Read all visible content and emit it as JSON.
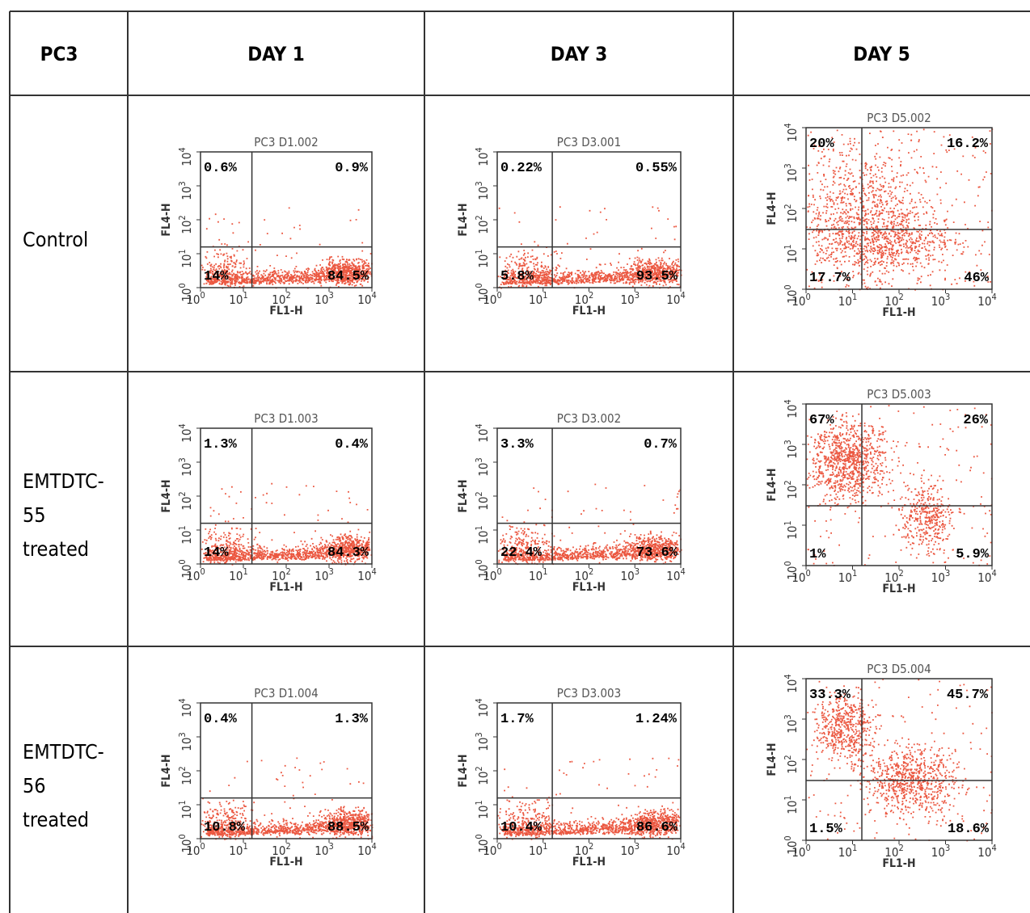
{
  "table": {
    "header": [
      "PC3",
      "DAY 1",
      "DAY 3",
      "DAY 5"
    ],
    "rows": [
      {
        "label": [
          "Control"
        ],
        "plots": [
          {
            "title": "PC3 D1.002",
            "quadrants": [
              "0.6%",
              "0.9%",
              "14%",
              "84.5%"
            ]
          },
          {
            "title": "PC3 D3.001",
            "quadrants": [
              "0.22%",
              "0.55%",
              "5.8%",
              "93.5%"
            ]
          },
          {
            "title": "PC3 D5.002",
            "quadrants": [
              "20%",
              "16.2%",
              "17.7%",
              "46%"
            ]
          }
        ]
      },
      {
        "label": [
          "EMTDTC-",
          "55",
          "treated"
        ],
        "plots": [
          {
            "title": "PC3 D1.003",
            "quadrants": [
              "1.3%",
              "0.4%",
              "14%",
              "84.3%"
            ]
          },
          {
            "title": "PC3 D3.002",
            "quadrants": [
              "3.3%",
              "0.7%",
              "22.4%",
              "73.6%"
            ]
          },
          {
            "title": "PC3 D5.003",
            "quadrants": [
              "67%",
              "26%",
              "1%",
              "5.9%"
            ]
          }
        ]
      },
      {
        "label": [
          "EMTDTC-",
          "56",
          "treated"
        ],
        "plots": [
          {
            "title": "PC3 D1.004",
            "quadrants": [
              "0.4%",
              "1.3%",
              "10.8%",
              "88.5%"
            ]
          },
          {
            "title": "PC3 D3.003",
            "quadrants": [
              "1.7%",
              "1.24%",
              "10.4%",
              "86.6%"
            ]
          },
          {
            "title": "PC3 D5.004",
            "quadrants": [
              "33.3%",
              "45.7%",
              "1.5%",
              "18.6%"
            ]
          }
        ]
      }
    ]
  },
  "axes": {
    "x_label": "FL1-H",
    "y_label": "FL4-H",
    "tick_base": "10",
    "tick_exponents": [
      "0",
      "1",
      "2",
      "3",
      "4"
    ]
  }
}
